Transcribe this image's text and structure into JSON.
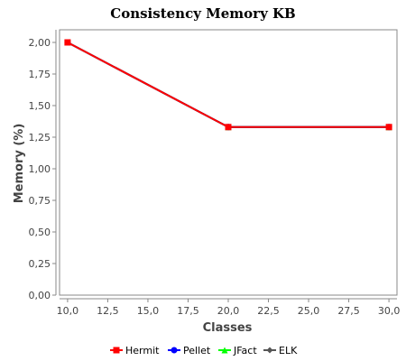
{
  "chart_data": {
    "type": "line",
    "title": "Consistency Memory KB",
    "xlabel": "Classes",
    "ylabel": "Memory (%)",
    "xlim": [
      9.5,
      30.5
    ],
    "ylim": [
      0,
      2.1
    ],
    "x_ticks": [
      "10,0",
      "12,5",
      "15,0",
      "17,5",
      "20,0",
      "22,5",
      "25,0",
      "27,5",
      "30,0"
    ],
    "y_ticks": [
      "0,00",
      "0,25",
      "0,50",
      "0,75",
      "1,00",
      "1,25",
      "1,50",
      "1,75",
      "2,00"
    ],
    "grid": false,
    "legend_position": "bottom",
    "series": [
      {
        "name": "Hermit",
        "color": "#ff0000",
        "marker": "square",
        "x": [
          10,
          20,
          30
        ],
        "y": [
          2.0,
          1.33,
          1.33
        ]
      },
      {
        "name": "Pellet",
        "color": "#0000ff",
        "marker": "circle",
        "x": [
          10,
          20,
          30
        ],
        "y": [
          2.0,
          1.33,
          1.33
        ]
      },
      {
        "name": "JFact",
        "color": "#00ff00",
        "marker": "triangle",
        "x": [
          10,
          20,
          30
        ],
        "y": [
          2.0,
          1.33,
          1.33
        ]
      },
      {
        "name": "ELK",
        "color": "#555555",
        "marker": "diamond",
        "x": [
          10,
          20,
          30
        ],
        "y": [
          2.0,
          1.33,
          1.33
        ]
      }
    ]
  }
}
